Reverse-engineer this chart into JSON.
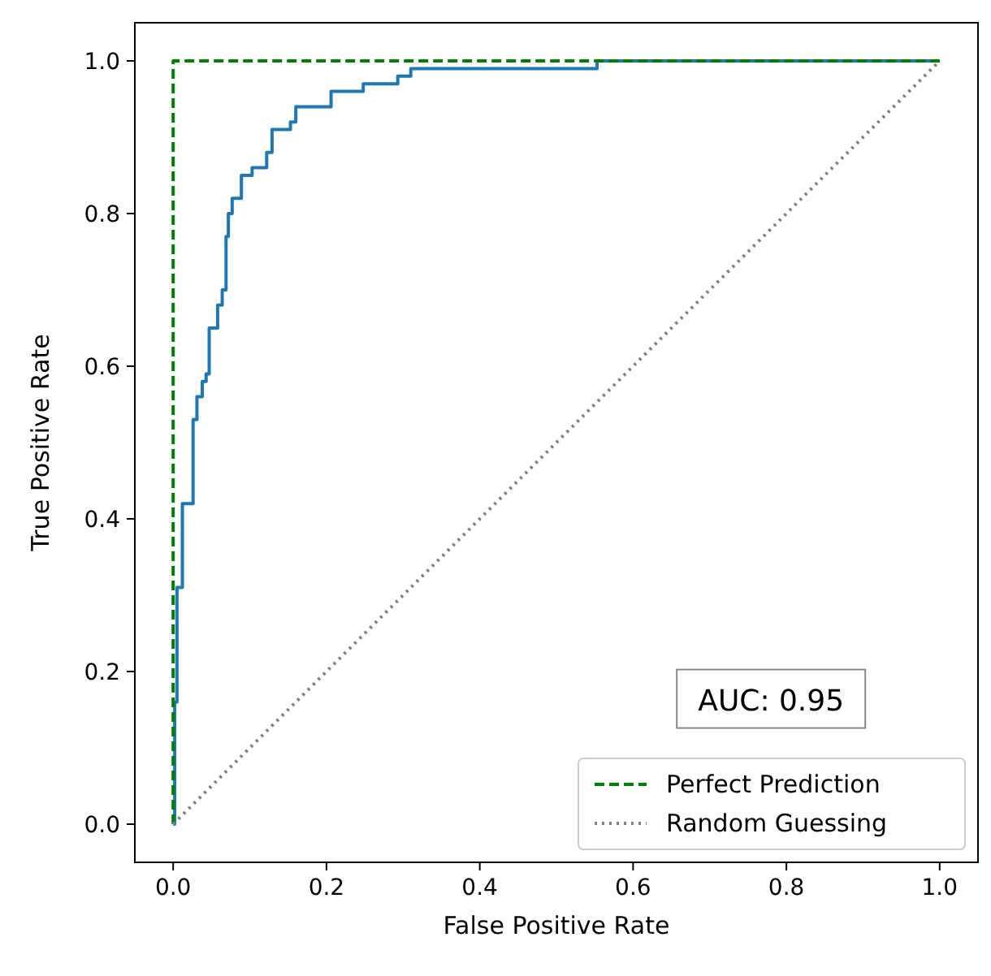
{
  "chart_data": {
    "type": "line",
    "xlabel": "False Positive Rate",
    "ylabel": "True Positive Rate",
    "xlim": [
      -0.05,
      1.05
    ],
    "ylim": [
      -0.05,
      1.05
    ],
    "xticks": [
      {
        "value": 0,
        "label": "0.0"
      },
      {
        "value": 0.2,
        "label": "0.2"
      },
      {
        "value": 0.4,
        "label": "0.4"
      },
      {
        "value": 0.6,
        "label": "0.6"
      },
      {
        "value": 0.8,
        "label": "0.8"
      },
      {
        "value": 1,
        "label": "1.0"
      }
    ],
    "yticks": [
      {
        "value": 0,
        "label": "0.0"
      },
      {
        "value": 0.2,
        "label": "0.2"
      },
      {
        "value": 0.4,
        "label": "0.4"
      },
      {
        "value": 0.6,
        "label": "0.6"
      },
      {
        "value": 0.8,
        "label": "0.8"
      },
      {
        "value": 1,
        "label": "1.0"
      }
    ],
    "grid": false,
    "legend": "bottom right",
    "annotations": [
      "AUC: 0.95"
    ],
    "series": [
      {
        "type": "step",
        "color": "#1f77b4",
        "line_style": "solid",
        "x": [
          0,
          0.002,
          0.005,
          0.012,
          0.026,
          0.031,
          0.038,
          0.043,
          0.047,
          0.058,
          0.064,
          0.069,
          0.072,
          0.077,
          0.089,
          0.103,
          0.122,
          0.129,
          0.133,
          0.153,
          0.16,
          0.185,
          0.206,
          0.24,
          0.248,
          0.293,
          0.31,
          0.478,
          0.553,
          1
        ],
        "values": [
          0,
          0.16,
          0.31,
          0.42,
          0.53,
          0.56,
          0.58,
          0.59,
          0.65,
          0.68,
          0.7,
          0.77,
          0.8,
          0.82,
          0.85,
          0.86,
          0.88,
          0.91,
          0.91,
          0.92,
          0.94,
          0.94,
          0.96,
          0.96,
          0.97,
          0.98,
          0.99,
          0.99,
          1,
          1
        ]
      },
      {
        "name": "Perfect Prediction",
        "color": "#008000",
        "line_style": "dashed",
        "x": [
          0,
          0,
          1
        ],
        "values": [
          0,
          1,
          1
        ]
      },
      {
        "name": "Random Guessing",
        "color": "#808080",
        "line_style": "dotted",
        "x": [
          0,
          1
        ],
        "values": [
          0,
          1
        ]
      }
    ]
  }
}
